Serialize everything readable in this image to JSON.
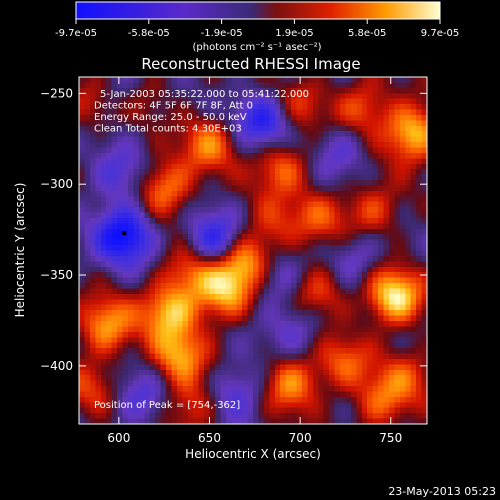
{
  "chart_data": {
    "type": "heatmap",
    "title": "Reconstructed RHESSI Image",
    "xlabel": "Heliocentric X (arcsec)",
    "ylabel": "Heliocentric Y (arcsec)",
    "xlim": [
      578,
      770
    ],
    "ylim": [
      -432,
      -241
    ],
    "x_ticks": [
      600,
      650,
      700,
      750
    ],
    "y_ticks": [
      -400,
      -350,
      -300,
      -250
    ],
    "colorbar": {
      "tick_labels": [
        "-9.7e-05",
        "-5.8e-05",
        "-1.9e-05",
        "1.9e-05",
        "5.8e-05",
        "9.7e-05"
      ],
      "range": [
        -9.7e-05,
        9.7e-05
      ],
      "unit_label": "(photons cm⁻² s⁻¹ asec⁻²)"
    },
    "annotations": [
      "5-Jan-2003 05:35:22.000 to 05:41:22.000",
      "Detectors: 4F 5F 6F 7F 8F, Att 0",
      "Energy Range: 25.0 - 50.0 keV",
      "Clean    Total counts: 4.30E+03"
    ],
    "peak_label": "Position of Peak = [754,-362]",
    "peak_marker": [
      603,
      -327
    ],
    "blobs": [
      {
        "x": 593,
        "y": -378,
        "v": 0.75
      },
      {
        "x": 603,
        "y": -328,
        "v": -1.0
      },
      {
        "x": 612,
        "y": -250,
        "v": 0.35
      },
      {
        "x": 600,
        "y": -250,
        "v": -0.5
      },
      {
        "x": 588,
        "y": -255,
        "v": 0.45
      },
      {
        "x": 600,
        "y": -295,
        "v": -0.45
      },
      {
        "x": 625,
        "y": -302,
        "v": 0.7
      },
      {
        "x": 628,
        "y": -370,
        "v": 0.8
      },
      {
        "x": 633,
        "y": -395,
        "v": 0.7
      },
      {
        "x": 640,
        "y": -348,
        "v": 0.55
      },
      {
        "x": 585,
        "y": -412,
        "v": 0.4
      },
      {
        "x": 640,
        "y": -422,
        "v": 0.5
      },
      {
        "x": 612,
        "y": -418,
        "v": -0.45
      },
      {
        "x": 650,
        "y": -278,
        "v": 0.6
      },
      {
        "x": 658,
        "y": -360,
        "v": 0.75
      },
      {
        "x": 653,
        "y": -332,
        "v": -0.8
      },
      {
        "x": 670,
        "y": -343,
        "v": 0.9
      },
      {
        "x": 680,
        "y": -265,
        "v": -0.75
      },
      {
        "x": 690,
        "y": -290,
        "v": 0.6
      },
      {
        "x": 683,
        "y": -352,
        "v": -0.45
      },
      {
        "x": 695,
        "y": -410,
        "v": 0.7
      },
      {
        "x": 698,
        "y": -378,
        "v": -0.4
      },
      {
        "x": 665,
        "y": -415,
        "v": -0.5
      },
      {
        "x": 710,
        "y": -360,
        "v": 0.55
      },
      {
        "x": 712,
        "y": -318,
        "v": 0.45
      },
      {
        "x": 724,
        "y": -398,
        "v": 0.5
      },
      {
        "x": 734,
        "y": -258,
        "v": 0.55
      },
      {
        "x": 740,
        "y": -315,
        "v": 0.5
      },
      {
        "x": 752,
        "y": -362,
        "v": 1.0
      },
      {
        "x": 762,
        "y": -272,
        "v": 0.9
      },
      {
        "x": 745,
        "y": -420,
        "v": 0.55
      },
      {
        "x": 760,
        "y": -405,
        "v": 0.4
      },
      {
        "x": 722,
        "y": -282,
        "v": -0.4
      },
      {
        "x": 730,
        "y": -340,
        "v": -0.4
      },
      {
        "x": 685,
        "y": -322,
        "v": 0.35
      },
      {
        "x": 700,
        "y": -255,
        "v": 0.4
      }
    ]
  },
  "footer": {
    "timestamp": "23-May-2013 05:23"
  }
}
